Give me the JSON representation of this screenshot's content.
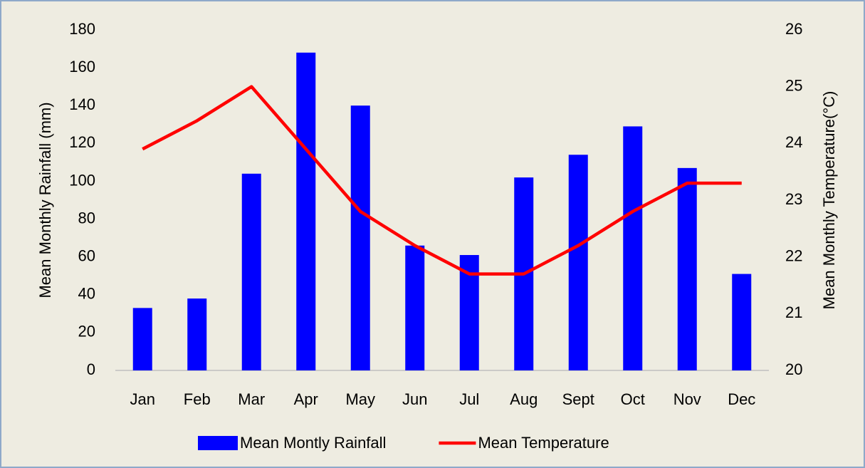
{
  "chart_data": {
    "type": "bar",
    "categories": [
      "Jan",
      "Feb",
      "Mar",
      "Apr",
      "May",
      "Jun",
      "Jul",
      "Aug",
      "Sept",
      "Oct",
      "Nov",
      "Dec"
    ],
    "series": [
      {
        "name": "Mean Montly Rainfall",
        "type": "bar",
        "color": "#0000ff",
        "axis": "y",
        "values": [
          33,
          38,
          104,
          168,
          140,
          66,
          61,
          102,
          114,
          129,
          107,
          51
        ]
      },
      {
        "name": "Mean Temperature",
        "type": "line",
        "color": "#ff0000",
        "axis": "y2",
        "values": [
          23.9,
          24.4,
          25.0,
          23.9,
          22.8,
          22.2,
          21.7,
          21.7,
          22.2,
          22.8,
          23.3,
          23.3
        ]
      }
    ],
    "ylabel": "Mean Monthly Rainfall (mm)",
    "y2label": "Mean Monthly Temperature(°C)",
    "ylim": [
      0,
      180
    ],
    "yticks": [
      0,
      20,
      40,
      60,
      80,
      100,
      120,
      140,
      160,
      180
    ],
    "y2lim": [
      20,
      26
    ],
    "y2ticks": [
      20,
      21,
      22,
      23,
      24,
      25,
      26
    ],
    "grid": false,
    "legend": "bottom"
  }
}
